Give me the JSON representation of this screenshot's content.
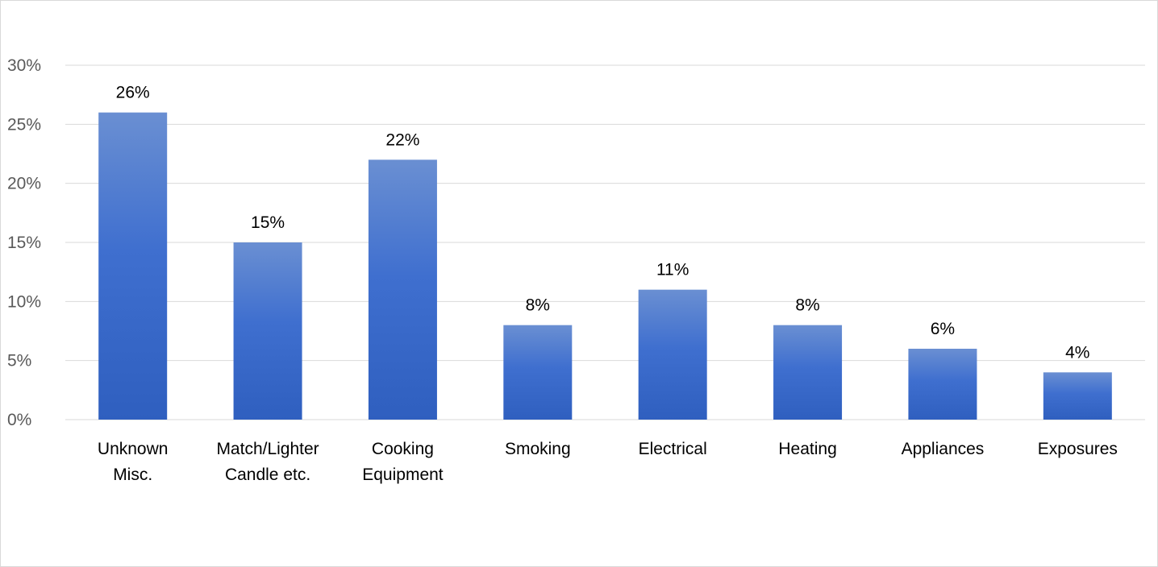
{
  "chart_data": {
    "type": "bar",
    "categories": [
      [
        "Unknown",
        "Misc."
      ],
      [
        "Match/Lighter",
        "Candle etc."
      ],
      [
        "Cooking",
        "Equipment"
      ],
      [
        "Smoking"
      ],
      [
        "Electrical"
      ],
      [
        "Heating"
      ],
      [
        "Appliances"
      ],
      [
        "Exposures"
      ]
    ],
    "values": [
      26,
      15,
      22,
      8,
      11,
      8,
      6,
      4
    ],
    "data_labels": [
      "26%",
      "15%",
      "22%",
      "8%",
      "11%",
      "8%",
      "6%",
      "4%"
    ],
    "yticks": [
      0,
      5,
      10,
      15,
      20,
      25,
      30
    ],
    "ytick_labels": [
      "0%",
      "5%",
      "10%",
      "15%",
      "20%",
      "25%",
      "30%"
    ],
    "ylim": [
      0,
      30
    ],
    "title": "",
    "xlabel": "",
    "ylabel": "",
    "grid": true,
    "legend": "none",
    "colors": {
      "bar_top": "#6a8fd2",
      "bar_mid": "#3f6fcf",
      "bar_bottom": "#2f5fbf",
      "grid": "#d9d9d9",
      "axis_text": "#595959",
      "label_text": "#000000"
    }
  }
}
